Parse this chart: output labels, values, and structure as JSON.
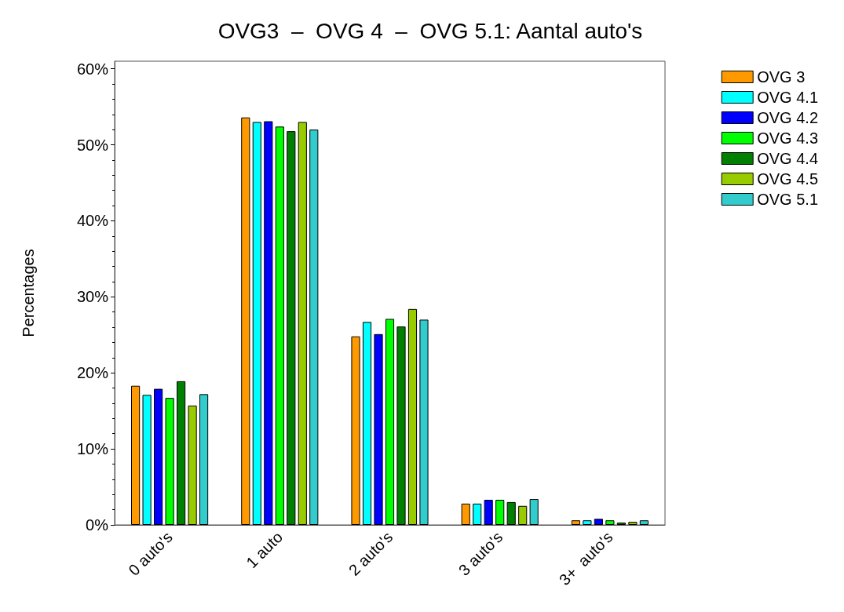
{
  "chart_data": {
    "type": "bar",
    "title": "OVG3  –  OVG 4  –  OVG 5.1: Aantal auto's",
    "ylabel": "Percentages",
    "categories": [
      "0 auto's",
      "1 auto",
      "2 auto's",
      "3 auto's",
      "3+  auto's"
    ],
    "series": [
      {
        "name": "OVG 3",
        "color": "#ff9900",
        "values": [
          18.3,
          53.6,
          24.8,
          2.8,
          0.6
        ]
      },
      {
        "name": "OVG 4.1",
        "color": "#00ffff",
        "values": [
          17.1,
          53.0,
          26.7,
          2.8,
          0.6
        ]
      },
      {
        "name": "OVG 4.2",
        "color": "#0000ff",
        "values": [
          17.9,
          53.1,
          25.1,
          3.3,
          0.8
        ]
      },
      {
        "name": "OVG 4.3",
        "color": "#00ff00",
        "values": [
          16.7,
          52.4,
          27.1,
          3.3,
          0.6
        ]
      },
      {
        "name": "OVG 4.4",
        "color": "#008000",
        "values": [
          18.9,
          51.8,
          26.1,
          3.0,
          0.3
        ]
      },
      {
        "name": "OVG 4.5",
        "color": "#99cc00",
        "values": [
          15.7,
          53.0,
          28.4,
          2.5,
          0.4
        ]
      },
      {
        "name": "OVG 5.1",
        "color": "#33cccc",
        "values": [
          17.2,
          52.0,
          27.0,
          3.4,
          0.6
        ]
      }
    ],
    "ylim": [
      0,
      61
    ],
    "yticks": [
      {
        "value": 0,
        "label": "0%"
      },
      {
        "value": 10,
        "label": "10%"
      },
      {
        "value": 20,
        "label": "20%"
      },
      {
        "value": 30,
        "label": "30%"
      },
      {
        "value": 40,
        "label": "40%"
      },
      {
        "value": 50,
        "label": "50%"
      },
      {
        "value": 60,
        "label": "60%"
      }
    ],
    "grid": false,
    "legend": "top right"
  }
}
